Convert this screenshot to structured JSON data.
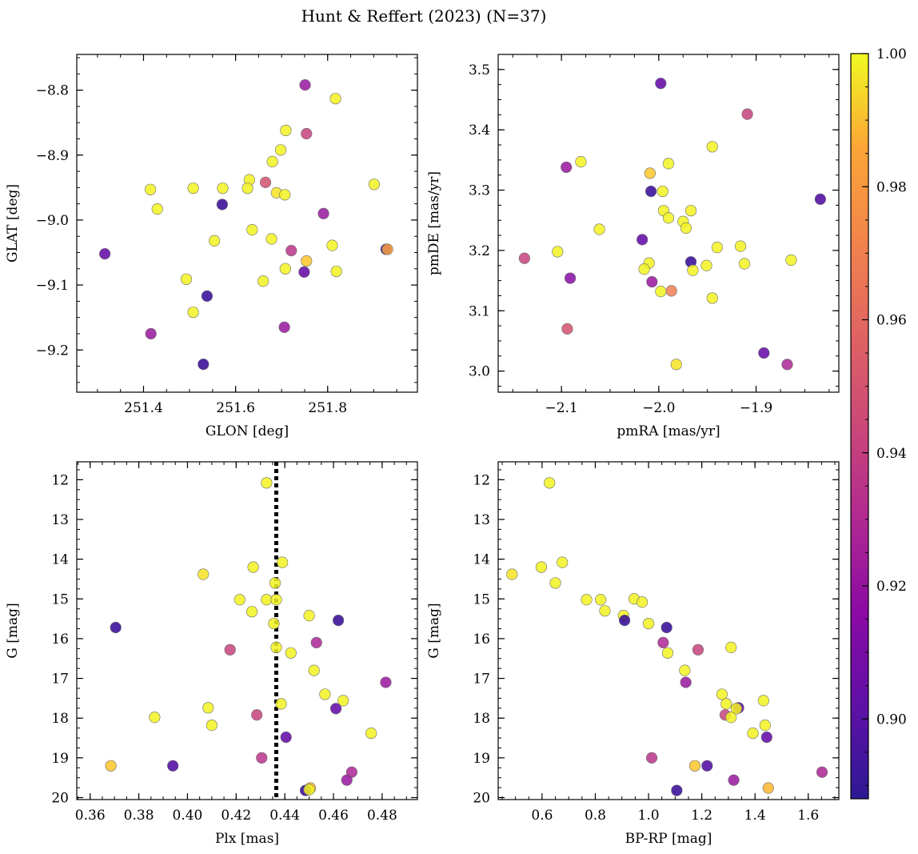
{
  "figure": {
    "title": "Hunt & Reffert (2023) (N=37)"
  },
  "colorbar": {
    "cmap": "plasma",
    "min": 0.888,
    "max": 1.0,
    "ticks": [
      0.9,
      0.92,
      0.94,
      0.96,
      0.98,
      1.0
    ],
    "tick_labels": [
      "0.90",
      "0.92",
      "0.94",
      "0.96",
      "0.98",
      "1.00"
    ]
  },
  "chart_data": [
    {
      "type": "scatter",
      "xlabel": "GLON [deg]",
      "ylabel": "GLAT [deg]",
      "xlim": [
        251.255,
        251.995
      ],
      "ylim": [
        -9.265,
        -8.745
      ],
      "y_inverted": false,
      "xticks": [
        251.4,
        251.6,
        251.8
      ],
      "xtick_labels": [
        "251.4",
        "251.6",
        "251.8"
      ],
      "yticks": [
        -8.8,
        -8.9,
        -9.0,
        -9.1,
        -9.2
      ],
      "ytick_labels": [
        "−8.8",
        "−8.9",
        "−9.0",
        "−9.1",
        "−9.2"
      ],
      "vline": null,
      "points": [
        {
          "x": 251.751,
          "y": -8.792,
          "c": 0.92
        },
        {
          "x": 251.817,
          "y": -8.813,
          "c": 0.995
        },
        {
          "x": 251.709,
          "y": -8.862,
          "c": 0.995
        },
        {
          "x": 251.754,
          "y": -8.867,
          "c": 0.935
        },
        {
          "x": 251.698,
          "y": -8.892,
          "c": 0.995
        },
        {
          "x": 251.68,
          "y": -8.91,
          "c": 0.995
        },
        {
          "x": 251.415,
          "y": -8.953,
          "c": 0.995
        },
        {
          "x": 251.508,
          "y": -8.951,
          "c": 0.995
        },
        {
          "x": 251.572,
          "y": -8.951,
          "c": 0.995
        },
        {
          "x": 251.63,
          "y": -8.938,
          "c": 0.995
        },
        {
          "x": 251.626,
          "y": -8.951,
          "c": 0.995
        },
        {
          "x": 251.665,
          "y": -8.942,
          "c": 0.94
        },
        {
          "x": 251.689,
          "y": -8.958,
          "c": 0.985
        },
        {
          "x": 251.707,
          "y": -8.961,
          "c": 0.995
        },
        {
          "x": 251.901,
          "y": -8.945,
          "c": 0.995
        },
        {
          "x": 251.43,
          "y": -8.983,
          "c": 0.995
        },
        {
          "x": 251.571,
          "y": -8.976,
          "c": 0.895
        },
        {
          "x": 251.791,
          "y": -8.99,
          "c": 0.92
        },
        {
          "x": 251.636,
          "y": -9.015,
          "c": 0.995
        },
        {
          "x": 251.678,
          "y": -9.029,
          "c": 0.995
        },
        {
          "x": 251.554,
          "y": -9.032,
          "c": 0.995
        },
        {
          "x": 251.81,
          "y": -9.039,
          "c": 0.995
        },
        {
          "x": 251.721,
          "y": -9.047,
          "c": 0.93
        },
        {
          "x": 251.927,
          "y": -9.045,
          "c": 0.895
        },
        {
          "x": 251.93,
          "y": -9.045,
          "c": 0.965
        },
        {
          "x": 251.316,
          "y": -9.052,
          "c": 0.905
        },
        {
          "x": 251.754,
          "y": -9.063,
          "c": 0.975
        },
        {
          "x": 251.708,
          "y": -9.075,
          "c": 0.995
        },
        {
          "x": 251.749,
          "y": -9.08,
          "c": 0.905
        },
        {
          "x": 251.819,
          "y": -9.079,
          "c": 0.995
        },
        {
          "x": 251.493,
          "y": -9.091,
          "c": 0.995
        },
        {
          "x": 251.66,
          "y": -9.094,
          "c": 0.995
        },
        {
          "x": 251.538,
          "y": -9.117,
          "c": 0.895
        },
        {
          "x": 251.508,
          "y": -9.142,
          "c": 0.995
        },
        {
          "x": 251.706,
          "y": -9.165,
          "c": 0.92
        },
        {
          "x": 251.416,
          "y": -9.175,
          "c": 0.92
        },
        {
          "x": 251.53,
          "y": -9.222,
          "c": 0.895
        }
      ]
    },
    {
      "type": "scatter",
      "xlabel": "pmRA [mas/yr]",
      "ylabel": "pmDE [mas/yr]",
      "xlim": [
        -2.165,
        -1.815
      ],
      "ylim": [
        2.965,
        3.525
      ],
      "y_inverted": false,
      "xticks": [
        -2.1,
        -2.0,
        -1.9
      ],
      "xtick_labels": [
        "−2.1",
        "−2.0",
        "−1.9"
      ],
      "yticks": [
        3.0,
        3.1,
        3.2,
        3.3,
        3.4,
        3.5
      ],
      "ytick_labels": [
        "3.0",
        "3.1",
        "3.2",
        "3.3",
        "3.4",
        "3.5"
      ],
      "vline": null,
      "points": [
        {
          "x": -1.998,
          "y": 3.477,
          "c": 0.905
        },
        {
          "x": -1.909,
          "y": 3.426,
          "c": 0.935
        },
        {
          "x": -1.945,
          "y": 3.372,
          "c": 0.995
        },
        {
          "x": -2.08,
          "y": 3.347,
          "c": 0.995
        },
        {
          "x": -2.095,
          "y": 3.338,
          "c": 0.92
        },
        {
          "x": -1.99,
          "y": 3.344,
          "c": 0.995
        },
        {
          "x": -2.009,
          "y": 3.328,
          "c": 0.975
        },
        {
          "x": -2.008,
          "y": 3.298,
          "c": 0.895
        },
        {
          "x": -1.996,
          "y": 3.298,
          "c": 0.995
        },
        {
          "x": -1.834,
          "y": 3.285,
          "c": 0.9
        },
        {
          "x": -1.995,
          "y": 3.266,
          "c": 0.995
        },
        {
          "x": -1.967,
          "y": 3.266,
          "c": 0.995
        },
        {
          "x": -1.99,
          "y": 3.254,
          "c": 0.995
        },
        {
          "x": -1.975,
          "y": 3.248,
          "c": 0.995
        },
        {
          "x": -1.972,
          "y": 3.237,
          "c": 0.995
        },
        {
          "x": -2.061,
          "y": 3.235,
          "c": 0.995
        },
        {
          "x": -2.017,
          "y": 3.218,
          "c": 0.905
        },
        {
          "x": -1.94,
          "y": 3.205,
          "c": 0.995
        },
        {
          "x": -1.916,
          "y": 3.207,
          "c": 0.995
        },
        {
          "x": -2.104,
          "y": 3.198,
          "c": 0.995
        },
        {
          "x": -2.138,
          "y": 3.187,
          "c": 0.935
        },
        {
          "x": -1.864,
          "y": 3.184,
          "c": 0.995
        },
        {
          "x": -1.967,
          "y": 3.181,
          "c": 0.895
        },
        {
          "x": -2.01,
          "y": 3.179,
          "c": 0.995
        },
        {
          "x": -1.912,
          "y": 3.178,
          "c": 0.995
        },
        {
          "x": -1.951,
          "y": 3.175,
          "c": 0.995
        },
        {
          "x": -2.015,
          "y": 3.169,
          "c": 0.995
        },
        {
          "x": -1.965,
          "y": 3.167,
          "c": 0.995
        },
        {
          "x": -2.091,
          "y": 3.154,
          "c": 0.915
        },
        {
          "x": -2.007,
          "y": 3.148,
          "c": 0.92
        },
        {
          "x": -1.998,
          "y": 3.132,
          "c": 0.995
        },
        {
          "x": -1.987,
          "y": 3.133,
          "c": 0.955
        },
        {
          "x": -1.945,
          "y": 3.121,
          "c": 0.995
        },
        {
          "x": -2.094,
          "y": 3.07,
          "c": 0.94
        },
        {
          "x": -1.892,
          "y": 3.03,
          "c": 0.905
        },
        {
          "x": -1.982,
          "y": 3.011,
          "c": 0.985
        },
        {
          "x": -1.868,
          "y": 3.011,
          "c": 0.925
        }
      ]
    },
    {
      "type": "scatter",
      "xlabel": "Plx [mas]",
      "ylabel": "G [mag]",
      "xlim": [
        0.3545,
        0.4945
      ],
      "ylim": [
        20.05,
        11.55
      ],
      "y_inverted": true,
      "xticks": [
        0.36,
        0.38,
        0.4,
        0.42,
        0.44,
        0.46,
        0.48
      ],
      "xtick_labels": [
        "0.36",
        "0.38",
        "0.40",
        "0.42",
        "0.44",
        "0.46",
        "0.48"
      ],
      "yticks": [
        12,
        13,
        14,
        15,
        16,
        17,
        18,
        19,
        20
      ],
      "ytick_labels": [
        "12",
        "13",
        "14",
        "15",
        "16",
        "17",
        "18",
        "19",
        "20"
      ],
      "vline": 0.4365,
      "points": [
        {
          "x": 0.4325,
          "y": 12.08,
          "c": 0.995
        },
        {
          "x": 0.439,
          "y": 14.08,
          "c": 0.995
        },
        {
          "x": 0.427,
          "y": 14.2,
          "c": 0.995
        },
        {
          "x": 0.4065,
          "y": 14.38,
          "c": 0.985
        },
        {
          "x": 0.436,
          "y": 14.6,
          "c": 0.995
        },
        {
          "x": 0.4215,
          "y": 15.02,
          "c": 0.995
        },
        {
          "x": 0.4325,
          "y": 15.02,
          "c": 0.995
        },
        {
          "x": 0.4365,
          "y": 15.02,
          "c": 0.995
        },
        {
          "x": 0.4265,
          "y": 15.32,
          "c": 0.995
        },
        {
          "x": 0.45,
          "y": 15.42,
          "c": 0.995
        },
        {
          "x": 0.462,
          "y": 15.54,
          "c": 0.895
        },
        {
          "x": 0.4355,
          "y": 15.62,
          "c": 0.995
        },
        {
          "x": 0.3705,
          "y": 15.72,
          "c": 0.895
        },
        {
          "x": 0.453,
          "y": 16.1,
          "c": 0.925
        },
        {
          "x": 0.4365,
          "y": 16.22,
          "c": 0.995
        },
        {
          "x": 0.4175,
          "y": 16.28,
          "c": 0.935
        },
        {
          "x": 0.4425,
          "y": 16.36,
          "c": 0.995
        },
        {
          "x": 0.452,
          "y": 16.8,
          "c": 0.995
        },
        {
          "x": 0.4815,
          "y": 17.1,
          "c": 0.92
        },
        {
          "x": 0.4565,
          "y": 17.4,
          "c": 0.995
        },
        {
          "x": 0.464,
          "y": 17.56,
          "c": 0.995
        },
        {
          "x": 0.4385,
          "y": 17.64,
          "c": 0.995
        },
        {
          "x": 0.4085,
          "y": 17.74,
          "c": 0.995
        },
        {
          "x": 0.461,
          "y": 17.76,
          "c": 0.905
        },
        {
          "x": 0.4285,
          "y": 17.92,
          "c": 0.935
        },
        {
          "x": 0.3865,
          "y": 17.98,
          "c": 0.995
        },
        {
          "x": 0.41,
          "y": 18.18,
          "c": 0.995
        },
        {
          "x": 0.4755,
          "y": 18.38,
          "c": 0.995
        },
        {
          "x": 0.4405,
          "y": 18.48,
          "c": 0.905
        },
        {
          "x": 0.4305,
          "y": 19.0,
          "c": 0.93
        },
        {
          "x": 0.3685,
          "y": 19.2,
          "c": 0.975
        },
        {
          "x": 0.394,
          "y": 19.2,
          "c": 0.9
        },
        {
          "x": 0.4675,
          "y": 19.36,
          "c": 0.925
        },
        {
          "x": 0.4655,
          "y": 19.56,
          "c": 0.92
        },
        {
          "x": 0.4505,
          "y": 19.76,
          "c": 0.97
        },
        {
          "x": 0.4485,
          "y": 19.82,
          "c": 0.895
        },
        {
          "x": 0.45,
          "y": 19.8,
          "c": 0.995
        }
      ]
    },
    {
      "type": "scatter",
      "xlabel": "BP-RP [mag]",
      "ylabel": "G [mag]",
      "xlim": [
        0.435,
        1.715
      ],
      "ylim": [
        20.05,
        11.55
      ],
      "y_inverted": true,
      "xticks": [
        0.6,
        0.8,
        1.0,
        1.2,
        1.4,
        1.6
      ],
      "xtick_labels": [
        "0.6",
        "0.8",
        "1.0",
        "1.2",
        "1.4",
        "1.6"
      ],
      "yticks": [
        12,
        13,
        14,
        15,
        16,
        17,
        18,
        19,
        20
      ],
      "ytick_labels": [
        "12",
        "13",
        "14",
        "15",
        "16",
        "17",
        "18",
        "19",
        "20"
      ],
      "vline": null,
      "points": [
        {
          "x": 0.628,
          "y": 12.08,
          "c": 0.995
        },
        {
          "x": 0.676,
          "y": 14.08,
          "c": 0.995
        },
        {
          "x": 0.597,
          "y": 14.2,
          "c": 0.995
        },
        {
          "x": 0.487,
          "y": 14.38,
          "c": 0.985
        },
        {
          "x": 0.65,
          "y": 14.6,
          "c": 0.995
        },
        {
          "x": 0.767,
          "y": 15.02,
          "c": 0.995
        },
        {
          "x": 0.82,
          "y": 15.02,
          "c": 0.995
        },
        {
          "x": 0.946,
          "y": 15.0,
          "c": 0.995
        },
        {
          "x": 0.976,
          "y": 15.08,
          "c": 0.995
        },
        {
          "x": 0.836,
          "y": 15.3,
          "c": 0.995
        },
        {
          "x": 0.906,
          "y": 15.42,
          "c": 0.995
        },
        {
          "x": 0.91,
          "y": 15.54,
          "c": 0.895
        },
        {
          "x": 1.0,
          "y": 15.62,
          "c": 0.995
        },
        {
          "x": 1.068,
          "y": 15.72,
          "c": 0.895
        },
        {
          "x": 1.055,
          "y": 16.1,
          "c": 0.925
        },
        {
          "x": 1.31,
          "y": 16.22,
          "c": 0.995
        },
        {
          "x": 1.186,
          "y": 16.28,
          "c": 0.935
        },
        {
          "x": 1.072,
          "y": 16.36,
          "c": 0.995
        },
        {
          "x": 1.136,
          "y": 16.8,
          "c": 0.995
        },
        {
          "x": 1.14,
          "y": 17.1,
          "c": 0.92
        },
        {
          "x": 1.276,
          "y": 17.4,
          "c": 0.995
        },
        {
          "x": 1.432,
          "y": 17.56,
          "c": 0.995
        },
        {
          "x": 1.292,
          "y": 17.64,
          "c": 0.995
        },
        {
          "x": 1.338,
          "y": 17.74,
          "c": 0.905
        },
        {
          "x": 1.33,
          "y": 17.76,
          "c": 0.995
        },
        {
          "x": 1.288,
          "y": 17.92,
          "c": 0.935
        },
        {
          "x": 1.31,
          "y": 17.98,
          "c": 0.995
        },
        {
          "x": 1.438,
          "y": 18.18,
          "c": 0.995
        },
        {
          "x": 1.392,
          "y": 18.38,
          "c": 0.995
        },
        {
          "x": 1.444,
          "y": 18.48,
          "c": 0.905
        },
        {
          "x": 1.012,
          "y": 19.0,
          "c": 0.93
        },
        {
          "x": 1.174,
          "y": 19.2,
          "c": 0.975
        },
        {
          "x": 1.22,
          "y": 19.2,
          "c": 0.9
        },
        {
          "x": 1.652,
          "y": 19.36,
          "c": 0.925
        },
        {
          "x": 1.32,
          "y": 19.56,
          "c": 0.92
        },
        {
          "x": 1.45,
          "y": 19.76,
          "c": 0.97
        },
        {
          "x": 1.106,
          "y": 19.82,
          "c": 0.895
        }
      ]
    }
  ]
}
